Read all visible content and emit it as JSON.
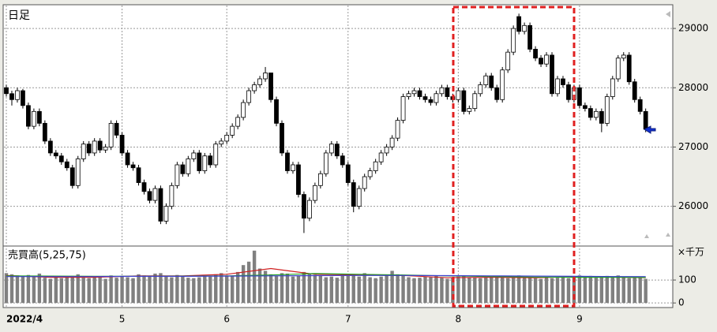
{
  "chart_data": [
    {
      "type": "candlestick",
      "title": "日足",
      "categories": [
        "2022/4",
        null,
        null,
        null,
        null,
        null,
        null,
        null,
        null,
        null,
        null,
        null,
        null,
        null,
        null,
        null,
        null,
        null,
        null,
        null,
        null,
        "5",
        null,
        null,
        null,
        null,
        null,
        null,
        null,
        null,
        null,
        null,
        null,
        null,
        null,
        null,
        null,
        null,
        null,
        null,
        "6",
        null,
        null,
        null,
        null,
        null,
        null,
        null,
        null,
        null,
        null,
        null,
        null,
        null,
        null,
        null,
        null,
        null,
        null,
        null,
        null,
        null,
        "7",
        null,
        null,
        null,
        null,
        null,
        null,
        null,
        null,
        null,
        null,
        null,
        null,
        null,
        null,
        null,
        null,
        null,
        null,
        null,
        "8",
        null,
        null,
        null,
        null,
        null,
        null,
        null,
        null,
        null,
        null,
        null,
        null,
        null,
        null,
        null,
        null,
        null,
        null,
        null,
        null,
        null,
        "9",
        null,
        null,
        null,
        null,
        null,
        null,
        null,
        null,
        null,
        null,
        null,
        null
      ],
      "open": [
        28000,
        27900,
        27800,
        27950,
        27700,
        27350,
        27600,
        27400,
        27100,
        26900,
        26850,
        26750,
        26650,
        26350,
        26800,
        27050,
        26900,
        27100,
        26950,
        27000,
        27400,
        27200,
        26900,
        26700,
        26650,
        26400,
        26250,
        26100,
        26300,
        25750,
        26000,
        26350,
        26700,
        26550,
        26800,
        26900,
        26600,
        26850,
        26700,
        27050,
        27100,
        27200,
        27350,
        27500,
        27750,
        27950,
        28050,
        28150,
        28250,
        27800,
        27400,
        26900,
        26600,
        26700,
        26200,
        25800,
        26100,
        26350,
        26550,
        26900,
        27050,
        26850,
        26700,
        26400,
        26000,
        26300,
        26500,
        26600,
        26750,
        26900,
        27000,
        27150,
        27450,
        27850,
        27900,
        27950,
        27850,
        27800,
        27750,
        27900,
        28000,
        27850,
        27800,
        27950,
        27600,
        27650,
        27900,
        28050,
        28200,
        28000,
        27800,
        28300,
        28600,
        29200,
        28950,
        29050,
        28650,
        28500,
        28400,
        28550,
        27900,
        28150,
        28050,
        27800,
        28000,
        27700,
        27650,
        27500,
        27600,
        27400,
        27850,
        28150,
        28500,
        28550,
        28100,
        27800,
        27600
      ],
      "high": [
        28050,
        27950,
        28000,
        27980,
        27750,
        27650,
        27650,
        27450,
        27150,
        26950,
        26900,
        26800,
        26700,
        26850,
        27100,
        27100,
        27150,
        27150,
        27050,
        27450,
        27450,
        27250,
        26950,
        26750,
        26700,
        26450,
        26300,
        26350,
        26350,
        26050,
        26400,
        26750,
        26750,
        26850,
        26950,
        26950,
        26900,
        26900,
        27100,
        27150,
        27250,
        27400,
        27550,
        27800,
        28000,
        28100,
        28200,
        28350,
        28250,
        27850,
        27450,
        26950,
        26750,
        26750,
        26250,
        26150,
        26400,
        26600,
        26950,
        27100,
        27100,
        26900,
        26750,
        26450,
        26350,
        26550,
        26650,
        26800,
        26950,
        27050,
        27200,
        27500,
        27900,
        27950,
        28000,
        28000,
        27900,
        27850,
        27950,
        28050,
        28050,
        27900,
        28000,
        28000,
        27700,
        27950,
        28100,
        28250,
        28250,
        28050,
        28350,
        28650,
        29050,
        29250,
        29100,
        29100,
        28700,
        28550,
        28600,
        28600,
        28200,
        28200,
        28100,
        28050,
        28050,
        27750,
        27700,
        27650,
        27650,
        27900,
        28200,
        28550,
        28600,
        28600,
        28150,
        27850,
        27650
      ],
      "low": [
        27850,
        27700,
        27750,
        27650,
        27300,
        27300,
        27350,
        27050,
        26850,
        26800,
        26700,
        26600,
        26300,
        26300,
        26750,
        26850,
        26850,
        26900,
        26900,
        26950,
        27150,
        26850,
        26650,
        26600,
        26350,
        26200,
        26050,
        26050,
        25700,
        25700,
        25950,
        26300,
        26500,
        26500,
        26750,
        26550,
        26550,
        26650,
        26650,
        27000,
        27050,
        27150,
        27300,
        27450,
        27700,
        27900,
        28000,
        28100,
        27750,
        27350,
        26850,
        26550,
        26550,
        26150,
        25550,
        25750,
        26050,
        26300,
        26500,
        26850,
        26800,
        26650,
        26350,
        25900,
        25950,
        26250,
        26450,
        26550,
        26700,
        26850,
        26950,
        27100,
        27400,
        27800,
        27850,
        27800,
        27750,
        27700,
        27700,
        27850,
        27800,
        27750,
        27750,
        27550,
        27550,
        27600,
        27850,
        28000,
        27950,
        27750,
        27750,
        28250,
        28550,
        28900,
        28900,
        28600,
        28450,
        28350,
        28350,
        27850,
        27850,
        28000,
        27750,
        27750,
        27650,
        27600,
        27450,
        27450,
        27250,
        27350,
        27800,
        28100,
        28450,
        28050,
        27750,
        27550,
        27250
      ],
      "close": [
        27900,
        27800,
        27950,
        27700,
        27350,
        27600,
        27400,
        27100,
        26900,
        26850,
        26750,
        26650,
        26350,
        26800,
        27050,
        26900,
        27100,
        26950,
        27000,
        27400,
        27200,
        26900,
        26700,
        26650,
        26400,
        26250,
        26100,
        26300,
        25750,
        26000,
        26350,
        26700,
        26550,
        26800,
        26900,
        26600,
        26850,
        26700,
        27050,
        27100,
        27200,
        27350,
        27500,
        27750,
        27950,
        28050,
        28150,
        28250,
        27800,
        27400,
        26900,
        26600,
        26700,
        26200,
        25800,
        26100,
        26350,
        26550,
        26900,
        27050,
        26850,
        26700,
        26400,
        26000,
        26300,
        26500,
        26600,
        26750,
        26900,
        27000,
        27150,
        27450,
        27850,
        27900,
        27950,
        27850,
        27800,
        27750,
        27900,
        28000,
        27850,
        27800,
        27950,
        27600,
        27650,
        27900,
        28050,
        28200,
        28000,
        27800,
        28300,
        28600,
        29000,
        28950,
        29050,
        28650,
        28500,
        28400,
        28550,
        27900,
        28150,
        28050,
        27800,
        28000,
        27700,
        27650,
        27500,
        27600,
        27400,
        27850,
        28150,
        28500,
        28550,
        28100,
        27800,
        27600,
        27300
      ],
      "color_up": "#ffffff",
      "color_down": "#000000",
      "ylim": [
        25330,
        29400
      ],
      "yticks": [
        26000,
        27000,
        28000,
        29000
      ],
      "grid": true
    },
    {
      "type": "bar",
      "title": "売買高(5,25,75)",
      "unit": "×千万",
      "values": [
        130,
        125,
        120,
        118,
        122,
        115,
        128,
        110,
        105,
        112,
        108,
        115,
        118,
        125,
        110,
        108,
        112,
        115,
        105,
        120,
        110,
        118,
        112,
        108,
        125,
        120,
        115,
        128,
        130,
        118,
        112,
        122,
        115,
        110,
        108,
        112,
        118,
        115,
        125,
        130,
        120,
        118,
        135,
        165,
        180,
        228,
        150,
        140,
        125,
        118,
        130,
        128,
        115,
        120,
        135,
        128,
        122,
        118,
        112,
        115,
        110,
        125,
        118,
        122,
        115,
        130,
        112,
        108,
        115,
        120,
        140,
        125,
        118,
        112,
        108,
        110,
        115,
        112,
        118,
        110,
        105,
        112,
        115,
        118,
        112,
        110,
        108,
        112,
        115,
        118,
        112,
        108,
        115,
        120,
        112,
        110,
        108,
        105,
        112,
        108,
        110,
        115,
        108,
        112,
        120,
        115,
        118,
        110,
        112,
        118,
        115,
        120,
        112,
        108,
        110,
        112,
        105
      ],
      "color": "#808080",
      "lines": [
        {
          "name": "5",
          "color": "#d02020",
          "x": [
            0,
            8,
            16,
            24,
            32,
            40,
            48,
            56,
            64,
            72,
            80,
            88,
            96,
            104,
            112,
            116
          ],
          "values": [
            120,
            112,
            112,
            118,
            118,
            125,
            150,
            125,
            122,
            120,
            110,
            112,
            110,
            115,
            112,
            110
          ]
        },
        {
          "name": "25",
          "color": "#20a020",
          "x": [
            0,
            8,
            16,
            24,
            32,
            40,
            48,
            56,
            64,
            72,
            80,
            88,
            96,
            104,
            112,
            116
          ],
          "values": [
            118,
            117,
            116,
            116,
            117,
            118,
            122,
            128,
            125,
            122,
            118,
            115,
            113,
            112,
            112,
            111
          ]
        },
        {
          "name": "75",
          "color": "#4040d0",
          "x": [
            0,
            8,
            16,
            24,
            32,
            40,
            48,
            56,
            64,
            72,
            80,
            88,
            96,
            104,
            112,
            116
          ],
          "values": [
            115,
            115,
            115,
            116,
            116,
            117,
            118,
            119,
            120,
            120,
            119,
            118,
            117,
            116,
            115,
            115
          ]
        }
      ],
      "ylim": [
        -20,
        248
      ],
      "yticks": [
        0,
        100
      ],
      "grid": true
    }
  ]
}
